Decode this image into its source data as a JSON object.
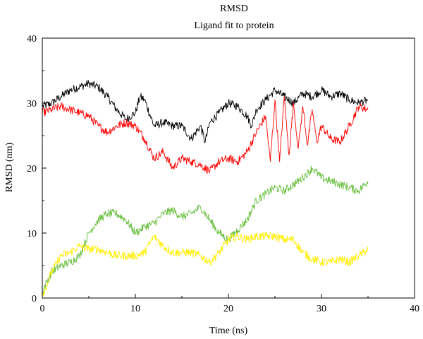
{
  "chart_data": {
    "type": "line",
    "title": "RMSD",
    "subtitle": "Ligand fit to protein",
    "xlabel": "Time (ns)",
    "ylabel": "RMSD (nm)",
    "xlim": [
      0,
      40
    ],
    "ylim": [
      0,
      40
    ],
    "xticks": [
      0,
      10,
      20,
      30,
      40
    ],
    "yticks": [
      0,
      10,
      20,
      30,
      40
    ],
    "grid": false,
    "legend": "none",
    "series": [
      {
        "color": "#000000",
        "x": [
          0,
          1,
          2,
          3,
          4,
          5,
          6,
          7,
          8,
          9,
          10,
          10.5,
          11,
          12,
          13,
          14,
          15,
          16,
          17,
          17.5,
          18,
          19,
          20,
          21,
          22,
          22.5,
          23,
          24,
          25,
          26,
          27,
          28,
          29,
          30,
          31,
          32,
          33,
          34,
          35
        ],
        "y": [
          29.5,
          30,
          31,
          32,
          32.5,
          33,
          32.5,
          31,
          29,
          27.5,
          28.5,
          31,
          30.5,
          26.5,
          27,
          26.5,
          26.5,
          24.5,
          26.5,
          24,
          27,
          28.5,
          30,
          29.5,
          28,
          26.5,
          29,
          30.5,
          32,
          31,
          30,
          31.5,
          31,
          32,
          31,
          31.5,
          30.5,
          30,
          30.5
        ]
      },
      {
        "color": "#ff0000",
        "x": [
          0,
          1,
          2,
          3,
          4,
          5,
          6,
          7,
          8,
          9,
          10,
          11,
          12,
          13,
          14,
          15,
          16,
          17,
          18,
          19,
          20,
          21,
          22,
          23,
          24,
          24.5,
          25,
          25.5,
          26,
          26.5,
          27,
          27.5,
          28,
          28.5,
          29,
          29.5,
          30,
          31,
          32,
          33,
          34,
          35
        ],
        "y": [
          28.5,
          29,
          29.5,
          29,
          28.5,
          28,
          26.5,
          25.5,
          26.5,
          27,
          26.5,
          24.5,
          21.5,
          22.5,
          20,
          21.5,
          21,
          20.5,
          19.5,
          21,
          21.5,
          21,
          22.5,
          25.5,
          28,
          21,
          30.5,
          21,
          31,
          22,
          30,
          23,
          29.5,
          23.5,
          29,
          24,
          26.5,
          24.5,
          24,
          26.5,
          29.5,
          29
        ]
      },
      {
        "color": "#6abf40",
        "x": [
          0,
          0.5,
          1,
          2,
          3,
          4,
          5,
          6,
          7,
          8,
          9,
          10,
          11,
          12,
          13,
          14,
          15,
          16,
          17,
          18,
          19,
          20,
          21,
          22,
          23,
          24,
          25,
          26,
          27,
          28,
          29,
          30,
          31,
          32,
          33,
          34,
          35
        ],
        "y": [
          1,
          2.5,
          4,
          5,
          5.5,
          6.5,
          10,
          12,
          13,
          13,
          12,
          10,
          11,
          11.5,
          13,
          13.5,
          12.5,
          13,
          14,
          12,
          10,
          9,
          10.5,
          12,
          15,
          16,
          17,
          16.5,
          17.5,
          18.5,
          20,
          18.5,
          18,
          17.5,
          17,
          16.5,
          18
        ]
      },
      {
        "color": "#ffee00",
        "x": [
          0,
          0.5,
          1,
          2,
          3,
          4,
          5,
          6,
          7,
          8,
          9,
          10,
          11,
          12,
          13,
          14,
          15,
          16,
          17,
          18,
          19,
          20,
          21,
          22,
          23,
          24,
          25,
          26,
          27,
          28,
          29,
          30,
          31,
          32,
          33,
          34,
          35
        ],
        "y": [
          0.5,
          2,
          4,
          6.5,
          7,
          8,
          7.5,
          7.5,
          7,
          6.5,
          6.5,
          6.5,
          7,
          9.5,
          8,
          7,
          7,
          7,
          6.5,
          5.5,
          7,
          9,
          9.5,
          9,
          9.5,
          9.5,
          9.5,
          9,
          9,
          7,
          6,
          5.5,
          5.5,
          6,
          5.5,
          6.5,
          7.5
        ]
      }
    ]
  }
}
